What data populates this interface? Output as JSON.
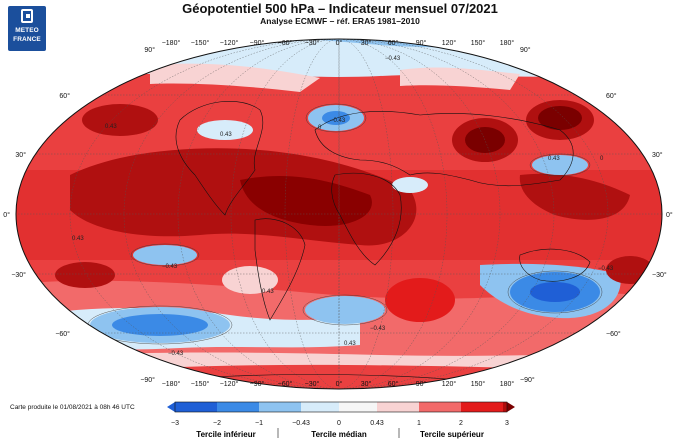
{
  "header": {
    "title": "Géopotentiel 500 hPa – Indicateur mensuel 07/2021",
    "subtitle": "Analyse ECMWF – réf. ERA5 1981–2010"
  },
  "logo": {
    "line1": "METEO",
    "line2": "FRANCE"
  },
  "map": {
    "projection": "Robinson",
    "lon_labels": [
      "−180°",
      "−150°",
      "−120°",
      "−90°",
      "−60°",
      "−30°",
      "0°",
      "30°",
      "60°",
      "90°",
      "120°",
      "150°",
      "180°"
    ],
    "lat_labels": [
      "90°",
      "60°",
      "30°",
      "0°",
      "−30°",
      "−60°",
      "−90°"
    ],
    "contour_labels": [
      "0.43",
      "−0.43",
      "0"
    ]
  },
  "colorbar": {
    "ticks": [
      "−3",
      "−2",
      "−1",
      "−0.43",
      "0",
      "0.43",
      "1",
      "2",
      "3"
    ],
    "colors": [
      "#1f5fd6",
      "#3b8ae6",
      "#8ec3f0",
      "#d7ecfa",
      "#f6f6f6",
      "#f8d3d3",
      "#f26a6a",
      "#e31b1b",
      "#b00b0b",
      "#7a0000"
    ],
    "category_labels": [
      "Tercile inférieur",
      "Tercile médian",
      "Tercile supérieur"
    ]
  },
  "footer": {
    "credit": "Carte produite le 01/08/2021 à 08h 46 UTC"
  }
}
